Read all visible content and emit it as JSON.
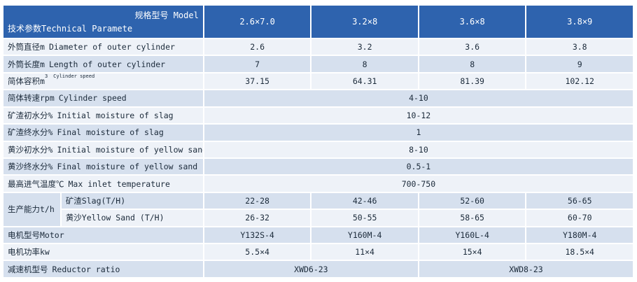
{
  "header": {
    "model_label": "规格型号  Model",
    "param_label": "技术参数Technical Paramete",
    "models": [
      "2.6×7.0",
      "3.2×8",
      "3.6×8",
      "3.8×9"
    ]
  },
  "rows": {
    "outer_diameter": {
      "zh": "外筒直径m",
      "en": "Diameter of outer cylinder",
      "values": [
        "2.6",
        "3.2",
        "3.6",
        "3.8"
      ]
    },
    "outer_length": {
      "zh": "外筒长度m",
      "en": "Length of outer cylinder",
      "values": [
        "7",
        "8",
        "8",
        "9"
      ]
    },
    "volume": {
      "zh": "简体容积m",
      "sup": "3",
      "note": "Cylinder speed",
      "values": [
        "37.15",
        "64.31",
        "81.39",
        "102.12"
      ]
    },
    "speed": {
      "zh": "简体转速rpm",
      "en": "Cylinder speed",
      "value": "4-10"
    },
    "slag_initial": {
      "zh": "矿渣初水分%",
      "en": "Initial moisture of slag",
      "value": "10-12"
    },
    "slag_final": {
      "zh": "矿渣终水分%",
      "en": "Final moisture of slag",
      "value": "1"
    },
    "sand_initial": {
      "zh": "黄沙初水分%",
      "en": "Initial moisture of yellow sand",
      "value": "8-10"
    },
    "sand_final": {
      "zh": "黄沙终水分%",
      "en": "Final moisture of yellow sand",
      "value": "0.5-1"
    },
    "inlet_temp": {
      "zh": "最高进气温度℃",
      "en": "Max inlet temperature",
      "value": "700-750"
    },
    "capacity": {
      "zh": "生产能力t/h",
      "slag": {
        "label": "矿渣Slag(T/H)",
        "values": [
          "22-28",
          "42-46",
          "52-60",
          "56-65"
        ]
      },
      "sand": {
        "label": "黄沙Yellow Sand (T/H)",
        "values": [
          "26-32",
          "50-55",
          "58-65",
          "60-70"
        ]
      }
    },
    "motor": {
      "zh": "电机型号Motor",
      "values": [
        "Y132S-4",
        "Y160M-4",
        "Y160L-4",
        "Y180M-4"
      ]
    },
    "power": {
      "zh": "电机功率kw",
      "values": [
        "5.5×4",
        "11×4",
        "15×4",
        "18.5×4"
      ]
    },
    "reducer": {
      "zh": "减速机型号",
      "en": "Reductor ratio",
      "values": [
        "XWD6-23",
        "XWD8-23"
      ]
    }
  }
}
